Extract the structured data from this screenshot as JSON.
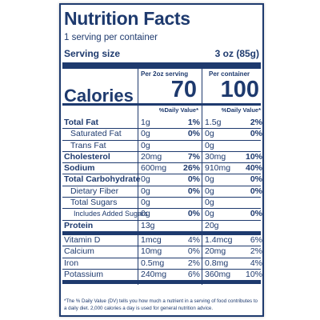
{
  "label": {
    "title": "Nutrition Facts",
    "servings": "1 serving per container",
    "serving_size_label": "Serving size",
    "serving_size_value": "3 oz (85g)",
    "col1_header": "Per 2oz serving",
    "col2_header": "Per container",
    "calories_label": "Calories",
    "calories_col1": "70",
    "calories_col2": "100",
    "dv_header": "%Daily Value*",
    "rows": [
      {
        "name": "Total Fat",
        "a1": "1g",
        "p1": "1%",
        "a2": "1.5g",
        "p2": "2%"
      },
      {
        "name": "Saturated Fat",
        "a1": "0g",
        "p1": "0%",
        "a2": "0g",
        "p2": "0%"
      },
      {
        "name": "Trans Fat",
        "a1": "0g",
        "p1": "",
        "a2": "0g",
        "p2": ""
      },
      {
        "name": "Cholesterol",
        "a1": "20mg",
        "p1": "7%",
        "a2": "30mg",
        "p2": "10%"
      },
      {
        "name": "Sodium",
        "a1": "600mg",
        "p1": "26%",
        "a2": "910mg",
        "p2": "40%"
      },
      {
        "name": "Total Carbohydrate",
        "a1": "0g",
        "p1": "0%",
        "a2": "0g",
        "p2": "0%"
      },
      {
        "name": "Dietary Fiber",
        "a1": "0g",
        "p1": "0%",
        "a2": "0g",
        "p2": "0%"
      },
      {
        "name": "Total Sugars",
        "a1": "0g",
        "p1": "",
        "a2": "0g",
        "p2": ""
      },
      {
        "name": "Includes Added Sugars",
        "a1": "0g",
        "p1": "0%",
        "a2": "0g",
        "p2": "0%"
      },
      {
        "name": "Protein",
        "a1": "13g",
        "p1": "",
        "a2": "20g",
        "p2": ""
      },
      {
        "name": "Vitamin D",
        "a1": "1mcg",
        "p1": "4%",
        "a2": "1.4mcg",
        "p2": "6%"
      },
      {
        "name": "Calcium",
        "a1": "10mg",
        "p1": "0%",
        "a2": "20mg",
        "p2": "2%"
      },
      {
        "name": "Iron",
        "a1": "0.5mg",
        "p1": "2%",
        "a2": "0.8mg",
        "p2": "4%"
      },
      {
        "name": "Potassium",
        "a1": "240mg",
        "p1": "6%",
        "a2": "360mg",
        "p2": "10%"
      }
    ],
    "footnote": "*The % Daily Value (DV) tells you how much a nutrient in a serving of food contributes to a daily diet. 2,000 calories a day is used for general nutrition advice."
  },
  "colors": {
    "ink": "#1e3a6e",
    "background": "#ffffff"
  }
}
